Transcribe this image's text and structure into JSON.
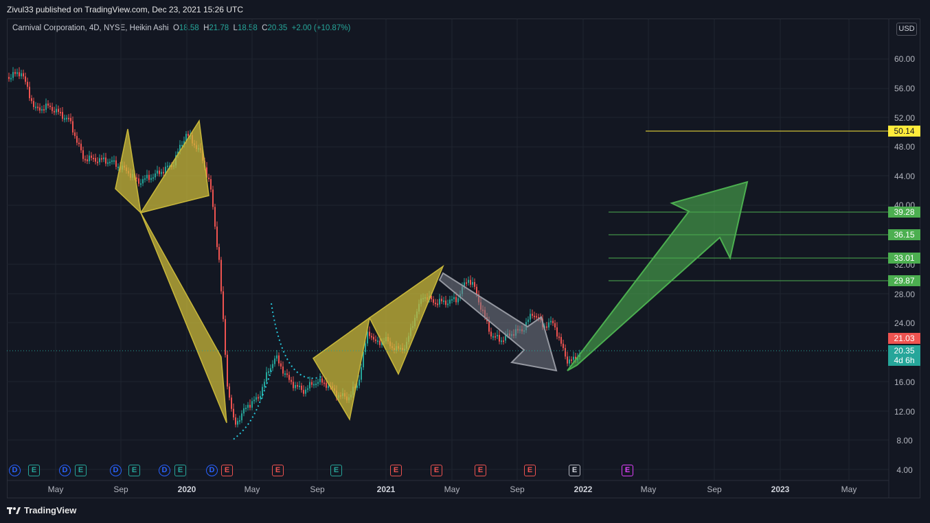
{
  "header": {
    "publish_line": "Zivul33 published on TradingView.com, Dec 23, 2021 15:26 UTC"
  },
  "legend": {
    "symbol_line": "Carnival Corporation, 4D, NYSE, Heikin Ashi",
    "open_label": "O",
    "open": "18.58",
    "high_label": "H",
    "high": "21.78",
    "low_label": "L",
    "low": "18.58",
    "close_label": "C",
    "close": "20.35",
    "change": "+2.00 (+10.87%)"
  },
  "currency": "USD",
  "y_axis": {
    "ticks": [
      "60.00",
      "56.00",
      "52.00",
      "48.00",
      "44.00",
      "40.00",
      "32.00",
      "28.00",
      "24.00",
      "16.00",
      "12.00",
      "8.00",
      "4.00"
    ]
  },
  "price_tags": {
    "target_4": "50.14",
    "target_3": "39.28",
    "target_2": "36.15",
    "target_1": "33.01",
    "target_0": "29.87",
    "prev_close": "21.03",
    "last": "20.35",
    "countdown": "4d 6h"
  },
  "x_axis": {
    "ticks": [
      "May",
      "Sep",
      "2020",
      "May",
      "Sep",
      "2021",
      "May",
      "Sep",
      "2022",
      "May",
      "Sep",
      "2023",
      "May"
    ]
  },
  "events": [
    {
      "type": "D"
    },
    {
      "type": "E"
    },
    {
      "type": "D"
    },
    {
      "type": "E"
    },
    {
      "type": "D"
    },
    {
      "type": "E"
    },
    {
      "type": "D"
    },
    {
      "type": "E"
    },
    {
      "type": "D"
    },
    {
      "type": "E"
    },
    {
      "type": "E"
    },
    {
      "type": "E"
    },
    {
      "type": "E"
    },
    {
      "type": "E"
    },
    {
      "type": "E"
    },
    {
      "type": "E"
    },
    {
      "type": "E"
    },
    {
      "type": "E"
    }
  ],
  "colors": {
    "bull": "#26a69a",
    "bear": "#ef5350",
    "pattern": "#c9b83a",
    "arrow_up": "#4caf50",
    "arrow_down": "#787b86",
    "target_line": "#4caf50",
    "yellow_tag": "#ffeb3b"
  },
  "footer": {
    "brand": "TradingView"
  }
}
